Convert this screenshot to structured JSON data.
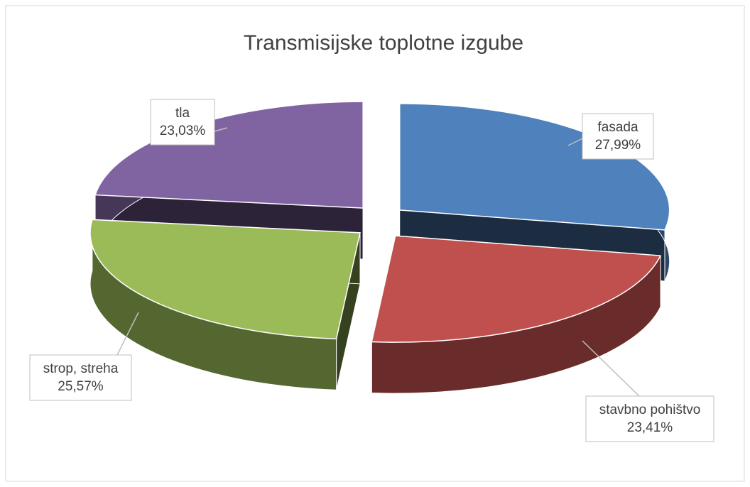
{
  "chart_data": {
    "type": "pie",
    "title": "Transmisijske toplotne izgube",
    "categories": [
      "fasada",
      "stavbno pohištvo",
      "strop, streha",
      "tla"
    ],
    "values": [
      27.99,
      23.41,
      25.57,
      23.03
    ],
    "value_labels": [
      "27,99%",
      "23,41%",
      "25,57%",
      "23,03%"
    ],
    "colors": [
      "#4f81bd",
      "#c0504d",
      "#9bbb59",
      "#8064a2"
    ]
  }
}
